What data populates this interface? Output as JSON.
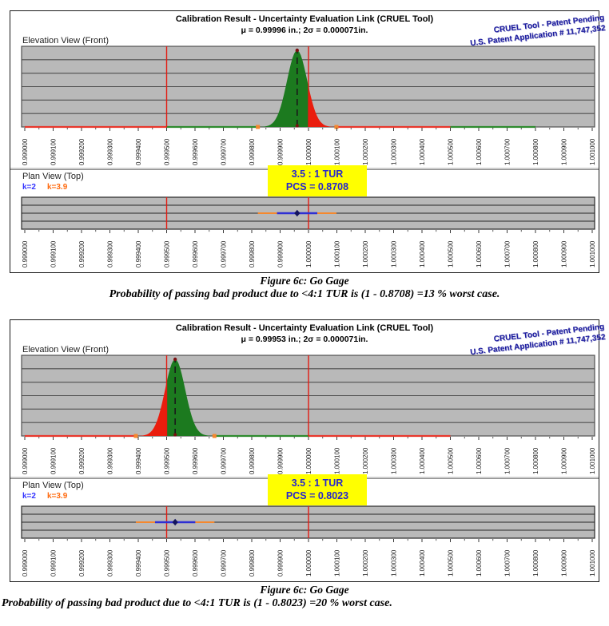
{
  "figures": [
    {
      "title": "Calibration Result - Uncertainty Evaluation Link (CRUEL Tool)",
      "stats": "μ = 0.99996 in.; 2σ = 0.000071in.",
      "patent_line1": "CRUEL Tool - Patent Pending",
      "patent_line2": "U.S. Patent Application # 11,747,352",
      "elevation_label": "Elevation View (Front)",
      "plan_label": "Plan View (Top)",
      "legend_k2": "k=2",
      "legend_k39": "k=3.9",
      "tur": "3.5 : 1 TUR",
      "pcs": "PCS = 0.8708"
    },
    {
      "title": "Calibration Result - Uncertainty Evaluation Link (CRUEL Tool)",
      "stats": "μ = 0.99953 in.; 2σ = 0.000071in.",
      "patent_line1": "CRUEL Tool - Patent Pending",
      "patent_line2": "U.S. Patent Application # 11,747,352",
      "elevation_label": "Elevation View (Front)",
      "plan_label": "Plan View (Top)",
      "legend_k2": "k=2",
      "legend_k39": "k=3.9",
      "tur": "3.5 : 1 TUR",
      "pcs": "PCS = 0.8023"
    }
  ],
  "captions": [
    {
      "title": "Figure 6c: Go Gage",
      "text": "Probability of passing bad product due to <4:1 TUR is (1 - 0.8708) =13 % worst case."
    },
    {
      "title": "Figure 6c: Go Gage",
      "text": "Probability of passing bad product due to <4:1 TUR is (1 - 0.8023) =20 % worst case."
    }
  ],
  "chart_data": [
    {
      "type": "area",
      "name": "figure1-elevation-distribution",
      "view": "Elevation View (Front)",
      "distribution": "normal",
      "mu": 0.99996,
      "sigma": 3.55e-05,
      "two_sigma": 7.1e-05,
      "xlim": [
        0.999,
        1.001
      ],
      "tick_step": 0.0001,
      "x_ticks": [
        "0.999000",
        "0.999100",
        "0.999200",
        "0.999300",
        "0.999400",
        "0.999500",
        "0.999600",
        "0.999700",
        "0.999800",
        "0.999900",
        "1.000000",
        "1.000100",
        "1.000200",
        "1.000300",
        "1.000400",
        "1.000500",
        "1.000600",
        "1.000700",
        "1.000800",
        "1.000900",
        "1.001000"
      ],
      "limit_lines": [
        0.9995,
        1.0
      ],
      "fail_side": "right",
      "split_at": 1.0,
      "k_marker": 3.9,
      "grid_rows": 6,
      "baseline_segments": [
        [
          0.999,
          0.9995,
          "red"
        ],
        [
          0.9995,
          0.99982,
          "green"
        ],
        [
          1.0001,
          1.0005,
          "red"
        ],
        [
          1.0005,
          1.0008,
          "green"
        ]
      ]
    },
    {
      "type": "errorbar",
      "name": "figure1-plan-errorbar",
      "view": "Plan View (Top)",
      "mu": 0.99996,
      "sigma": 3.55e-05,
      "k2": 2,
      "k39": 3.9,
      "tur": "3.5 : 1 TUR",
      "pcs": 0.8708,
      "xlim": [
        0.999,
        1.001
      ],
      "tick_step": 0.0001,
      "x_ticks": [
        "0.999000",
        "0.999100",
        "0.999200",
        "0.999300",
        "0.999400",
        "0.999500",
        "0.999600",
        "0.999700",
        "0.999800",
        "0.999900",
        "1.000000",
        "1.000100",
        "1.000200",
        "1.000300",
        "1.000400",
        "1.000500",
        "1.000600",
        "1.000700",
        "1.000800",
        "1.000900",
        "1.001000"
      ],
      "limit_lines": [
        0.9995,
        1.0
      ],
      "grid_rows": 4
    },
    {
      "type": "area",
      "name": "figure2-elevation-distribution",
      "view": "Elevation View (Front)",
      "distribution": "normal",
      "mu": 0.99953,
      "sigma": 3.55e-05,
      "two_sigma": 7.1e-05,
      "xlim": [
        0.999,
        1.001
      ],
      "tick_step": 0.0001,
      "x_ticks": [
        "0.999000",
        "0.999100",
        "0.999200",
        "0.999300",
        "0.999400",
        "0.999500",
        "0.999600",
        "0.999700",
        "0.999800",
        "0.999900",
        "1.000000",
        "1.000100",
        "1.000200",
        "1.000300",
        "1.000400",
        "1.000500",
        "1.000600",
        "1.000700",
        "1.000800",
        "1.000900",
        "1.001000"
      ],
      "limit_lines": [
        0.9995,
        1.0
      ],
      "fail_side": "left",
      "split_at": 0.9995,
      "k_marker": 3.9,
      "grid_rows": 6,
      "baseline_segments": [
        [
          0.999,
          0.999392,
          "red"
        ],
        [
          0.99967,
          1.0,
          "green"
        ],
        [
          1.0,
          1.0005,
          "red"
        ]
      ]
    },
    {
      "type": "errorbar",
      "name": "figure2-plan-errorbar",
      "view": "Plan View (Top)",
      "mu": 0.99953,
      "sigma": 3.55e-05,
      "k2": 2,
      "k39": 3.9,
      "tur": "3.5 : 1 TUR",
      "pcs": 0.8023,
      "xlim": [
        0.999,
        1.001
      ],
      "tick_step": 0.0001,
      "x_ticks": [
        "0.999000",
        "0.999100",
        "0.999200",
        "0.999300",
        "0.999400",
        "0.999500",
        "0.999600",
        "0.999700",
        "0.999800",
        "0.999900",
        "1.000000",
        "1.000100",
        "1.000200",
        "1.000300",
        "1.000400",
        "1.000500",
        "1.000600",
        "1.000700",
        "1.000800",
        "1.000900",
        "1.001000"
      ],
      "limit_lines": [
        0.9995,
        1.0
      ],
      "grid_rows": 4
    }
  ],
  "colors": {
    "band_fill": "#b9b9b9",
    "elev_grid": "#4f4f4f",
    "plan_grid": "#282828",
    "limit_red": "#e31b12",
    "curve_green": "#1c7a1f",
    "curve_red": "#ea1d0d",
    "baseline_red": "#e8372c",
    "baseline_green": "#2e8b2e",
    "orange": "#f5882e",
    "blue_bar": "#2f2fd3",
    "navy": "#14145e",
    "mu_dash": "#1a1a1a",
    "peak_dot": "#7c1010",
    "yellow_box": "#ffff00",
    "tur_text": "#2727cc",
    "patent_blue": "#1b1b9e",
    "tick_text": "#1c1c1c"
  }
}
